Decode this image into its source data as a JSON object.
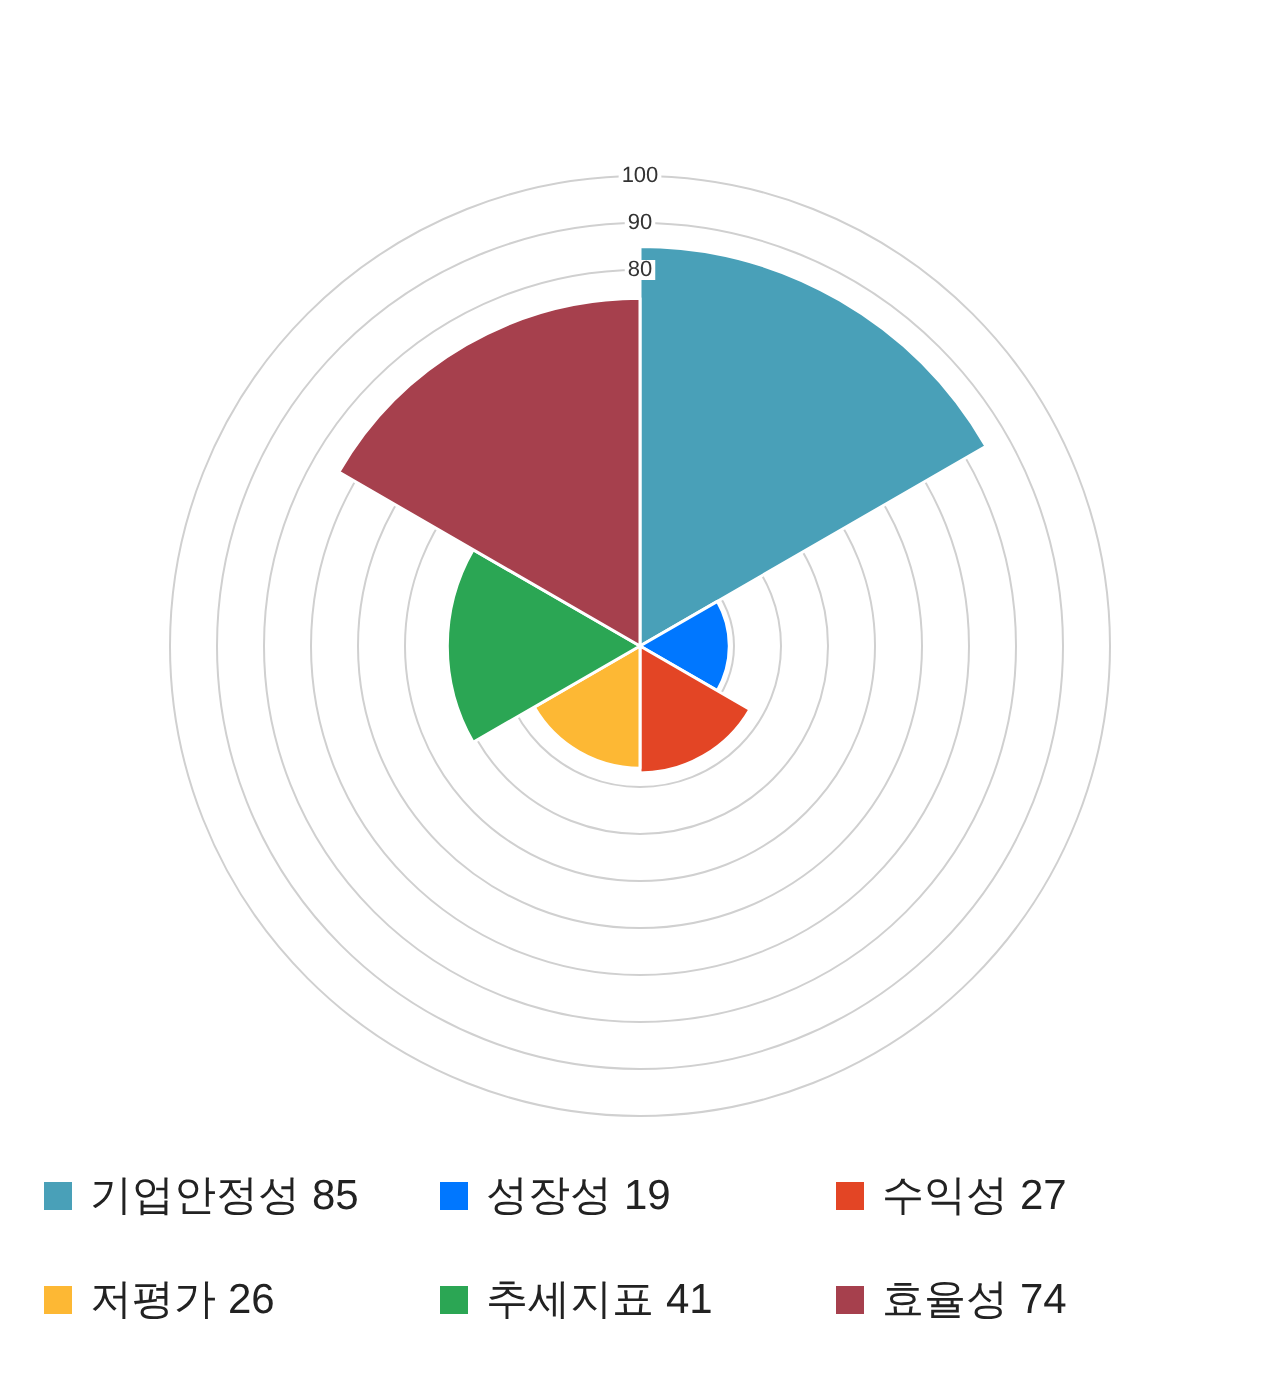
{
  "chart_data": {
    "type": "other",
    "series": [
      {
        "name": "기업안정성",
        "color": "#49a0b8",
        "values": [
          85
        ]
      },
      {
        "name": "성장성",
        "color": "#0077ff",
        "values": [
          19
        ]
      },
      {
        "name": "수익성",
        "color": "#e34525",
        "values": [
          27
        ]
      },
      {
        "name": "저평가",
        "color": "#fdb834",
        "values": [
          26
        ]
      },
      {
        "name": "추세지표",
        "color": "#2ba654",
        "values": [
          41
        ]
      },
      {
        "name": "효율성",
        "color": "#a6404d",
        "values": [
          74
        ]
      }
    ],
    "annotations": [
      "100",
      "90",
      "80"
    ],
    "data_labels": true,
    "legend": "bottom"
  }
}
